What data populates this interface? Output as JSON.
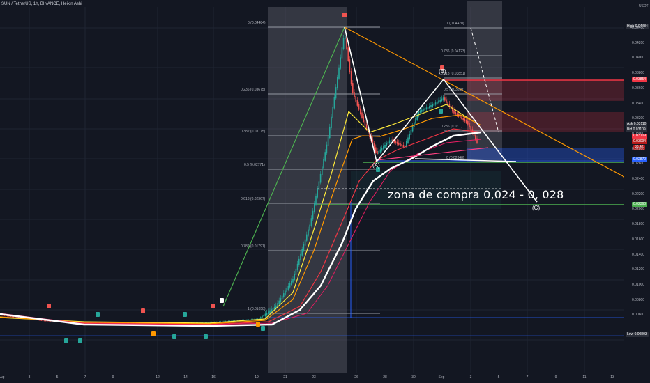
{
  "header": {
    "title": "SUN / TetherUS, 1h, BINANCE, Heikin Ashi"
  },
  "price_axis": {
    "unit": "USDT",
    "ticks": [
      "0.04400",
      "0.04200",
      "0.04000",
      "0.03800",
      "0.03600",
      "0.03400",
      "0.03200",
      "0.03000",
      "0.02800",
      "0.02600",
      "0.02400",
      "0.02200",
      "0.02000",
      "0.01800",
      "0.01600",
      "0.01400",
      "0.01200",
      "0.01000",
      "0.00800",
      "0.00600"
    ],
    "tags": {
      "high_label": "High",
      "high_value": "0.04484",
      "level_red": "0.03854",
      "ask_label": "Ask",
      "ask_value": "0.03110",
      "bid_label": "Bid",
      "bid_value": "0.03109",
      "last_value": "0.03109",
      "price_mid": "0.03094",
      "countdown": "30:42",
      "level_blue": "0.02870",
      "level_green": "0.02360",
      "low_label": "Low",
      "low_value": "0.00803"
    }
  },
  "time_axis": {
    "labels": [
      "Aug",
      "3",
      "5",
      "7",
      "9",
      "12",
      "14",
      "16",
      "19",
      "21",
      "23",
      "26",
      "28",
      "30",
      "Sep",
      "3",
      "5",
      "7",
      "9",
      "11",
      "13"
    ]
  },
  "fib_left": [
    {
      "label": "0 (0.04484)"
    },
    {
      "label": "0.236 (0.03675)"
    },
    {
      "label": "0.382 (0.03175)"
    },
    {
      "label": "0.5 (0.02771)"
    },
    {
      "label": "0.618 (0.02367)"
    },
    {
      "label": "0.786 (0.01791)"
    },
    {
      "label": "1 (0.01058)"
    }
  ],
  "fib_right": [
    {
      "label": "1 (0.04470)"
    },
    {
      "label": "0.786 (0.04123)"
    },
    {
      "label": "0.618 (0.03851)"
    },
    {
      "label": "0.5 (0.03659)"
    },
    {
      "label": "0.236 (0.03...)"
    },
    {
      "label": "0 (0.02848)"
    }
  ],
  "annotation": {
    "text": "zona de compra 0,024 - 0, 028"
  },
  "waves": {
    "a": "(A)",
    "b": "(B)",
    "c": "(C)"
  },
  "colors": {
    "background": "#131722",
    "up": "#26a69a",
    "down": "#ef5350",
    "ema_white": "#ffffff",
    "ema_orange": "#ff9800",
    "green_level": "#4caf50",
    "blue_level": "#2962ff",
    "red_level": "#f23645"
  },
  "chart_data": {
    "type": "candlestick",
    "title": "SUN / TetherUS, 1h, BINANCE, Heikin Ashi",
    "y_unit": "USDT",
    "ylim": [
      0.0055,
      0.0465
    ],
    "x_labels": [
      "Aug",
      "3",
      "5",
      "7",
      "9",
      "12",
      "14",
      "16",
      "19",
      "21",
      "23",
      "26",
      "28",
      "30",
      "Sep",
      "3",
      "5",
      "7",
      "9",
      "11",
      "13"
    ],
    "price_path": [
      {
        "x": "Aug 1",
        "y": 0.0105
      },
      {
        "x": "Aug 5",
        "y": 0.0098
      },
      {
        "x": "Aug 9",
        "y": 0.0094
      },
      {
        "x": "Aug 14",
        "y": 0.0094
      },
      {
        "x": "Aug 18",
        "y": 0.0098
      },
      {
        "x": "Aug 20",
        "y": 0.0106
      },
      {
        "x": "Aug 22",
        "y": 0.018
      },
      {
        "x": "Aug 23",
        "y": 0.03
      },
      {
        "x": "Aug 25",
        "y": 0.0448
      },
      {
        "x": "Aug 26",
        "y": 0.036
      },
      {
        "x": "Aug 27",
        "y": 0.0285
      },
      {
        "x": "Aug 29",
        "y": 0.03
      },
      {
        "x": "Aug 31",
        "y": 0.038
      },
      {
        "x": "Sep 1",
        "y": 0.035
      },
      {
        "x": "Sep 3",
        "y": 0.0311
      }
    ],
    "elliott_labels": [
      {
        "label": "(A)",
        "x": "Aug 27",
        "y": 0.028
      },
      {
        "label": "(B)",
        "x": "Aug 31",
        "y": 0.0389
      },
      {
        "label": "(C)",
        "x": "Sep 6",
        "y": 0.0235
      }
    ],
    "fib_retracement_1": {
      "low": 0.01058,
      "high": 0.04484,
      "levels": [
        [
          0,
          0.04484
        ],
        [
          0.236,
          0.03675
        ],
        [
          0.382,
          0.03175
        ],
        [
          0.5,
          0.02771
        ],
        [
          0.618,
          0.02367
        ],
        [
          0.786,
          0.01791
        ],
        [
          1,
          0.01058
        ]
      ]
    },
    "fib_retracement_2": {
      "levels": [
        [
          1,
          0.0447
        ],
        [
          0.786,
          0.04123
        ],
        [
          0.618,
          0.03851
        ],
        [
          0.5,
          0.03659
        ],
        [
          0,
          0.02848
        ]
      ]
    },
    "horizontal_levels": [
      0.03854,
      0.0287,
      0.0236,
      0.00803
    ],
    "buy_zone": [
      0.024,
      0.028
    ],
    "high": 0.04484,
    "low": 0.00803,
    "last": 0.03109
  }
}
